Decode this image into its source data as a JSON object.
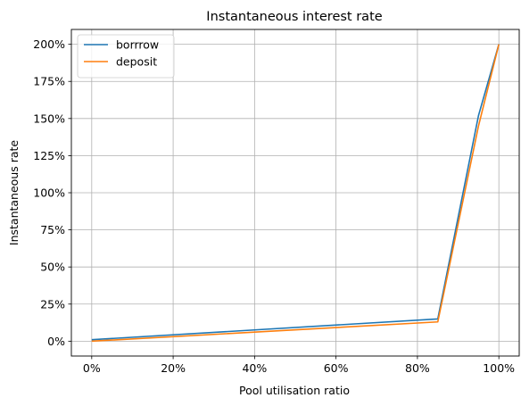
{
  "chart_data": {
    "type": "line",
    "title": "Instantaneous interest rate",
    "xlabel": "Pool utilisation ratio",
    "ylabel": "Instantaneous rate",
    "xlim": [
      -0.05,
      1.05
    ],
    "ylim": [
      -0.1,
      2.1
    ],
    "x_ticks": [
      0,
      0.2,
      0.4,
      0.6,
      0.8,
      1.0
    ],
    "x_tick_labels": [
      "0%",
      "20%",
      "40%",
      "60%",
      "80%",
      "100%"
    ],
    "y_ticks": [
      0,
      0.25,
      0.5,
      0.75,
      1.0,
      1.25,
      1.5,
      1.75,
      2.0
    ],
    "y_tick_labels": [
      "0%",
      "25%",
      "50%",
      "75%",
      "100%",
      "125%",
      "150%",
      "175%",
      "200%"
    ],
    "grid": true,
    "legend_position": "top-left",
    "series": [
      {
        "name": "borrrow",
        "color": "#1f77b4",
        "x": [
          0,
          0.85,
          0.95,
          1.0
        ],
        "y": [
          0.01,
          0.15,
          1.52,
          2.0
        ]
      },
      {
        "name": "deposit",
        "color": "#ff7f0e",
        "x": [
          0,
          0.85,
          0.95,
          1.0
        ],
        "y": [
          0.0,
          0.13,
          1.45,
          2.0
        ]
      }
    ]
  }
}
